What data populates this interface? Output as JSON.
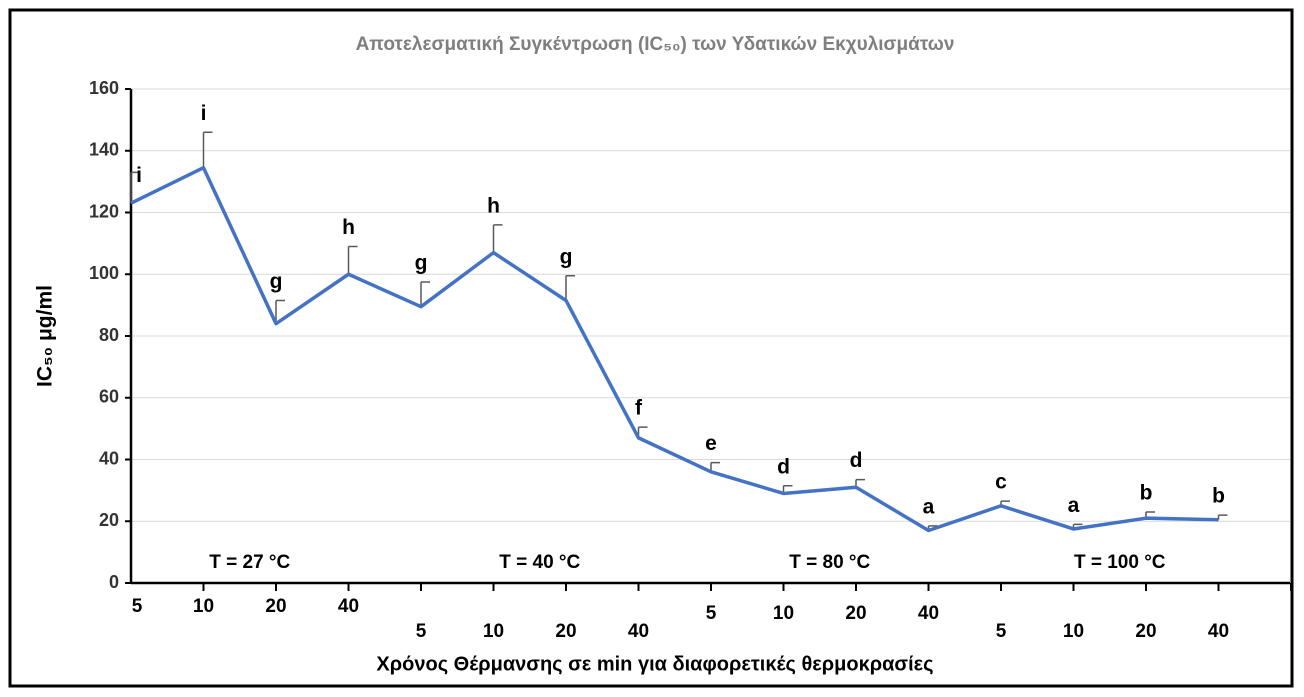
{
  "chart_data": {
    "type": "line",
    "title": "Αποτελεσματική Συγκέντρωση (IC₅₀) των Υδατικών Εκχυλισμάτων",
    "y_label": "IC₅₀ μg/ml",
    "x_label": "Χρόνος  Θέρμανσης σε min  για διαφορετικές  θερμοκρασίες",
    "categories": [
      "5",
      "10",
      "20",
      "40",
      "5",
      "10",
      "20",
      "40",
      "5",
      "10",
      "20",
      "40",
      "5",
      "10",
      "20",
      "40"
    ],
    "groups": [
      "T = 27 °C",
      "T = 40 °C",
      "T = 80 °C",
      "T = 100 °C"
    ],
    "series": [
      {
        "color": "#4472c4",
        "values": [
          123,
          134.5,
          84,
          100,
          89.5,
          107,
          91.5,
          47,
          36,
          29,
          31,
          17,
          25,
          17.5,
          21,
          20.5
        ],
        "errors": [
          10,
          11.5,
          7.5,
          9,
          8,
          9,
          8,
          3.5,
          3,
          2.5,
          2.5,
          1.5,
          1.5,
          1.5,
          2,
          1.5
        ],
        "point_labels": [
          "i",
          "i",
          "g",
          "h",
          "g",
          "h",
          "g",
          "f",
          "e",
          "d",
          "d",
          "a",
          "c",
          "a",
          "b",
          "b"
        ]
      }
    ],
    "ylim": [
      0,
      160
    ],
    "yticks": [
      0,
      20,
      40,
      60,
      80,
      100,
      120,
      140,
      160
    ],
    "grid": true
  }
}
